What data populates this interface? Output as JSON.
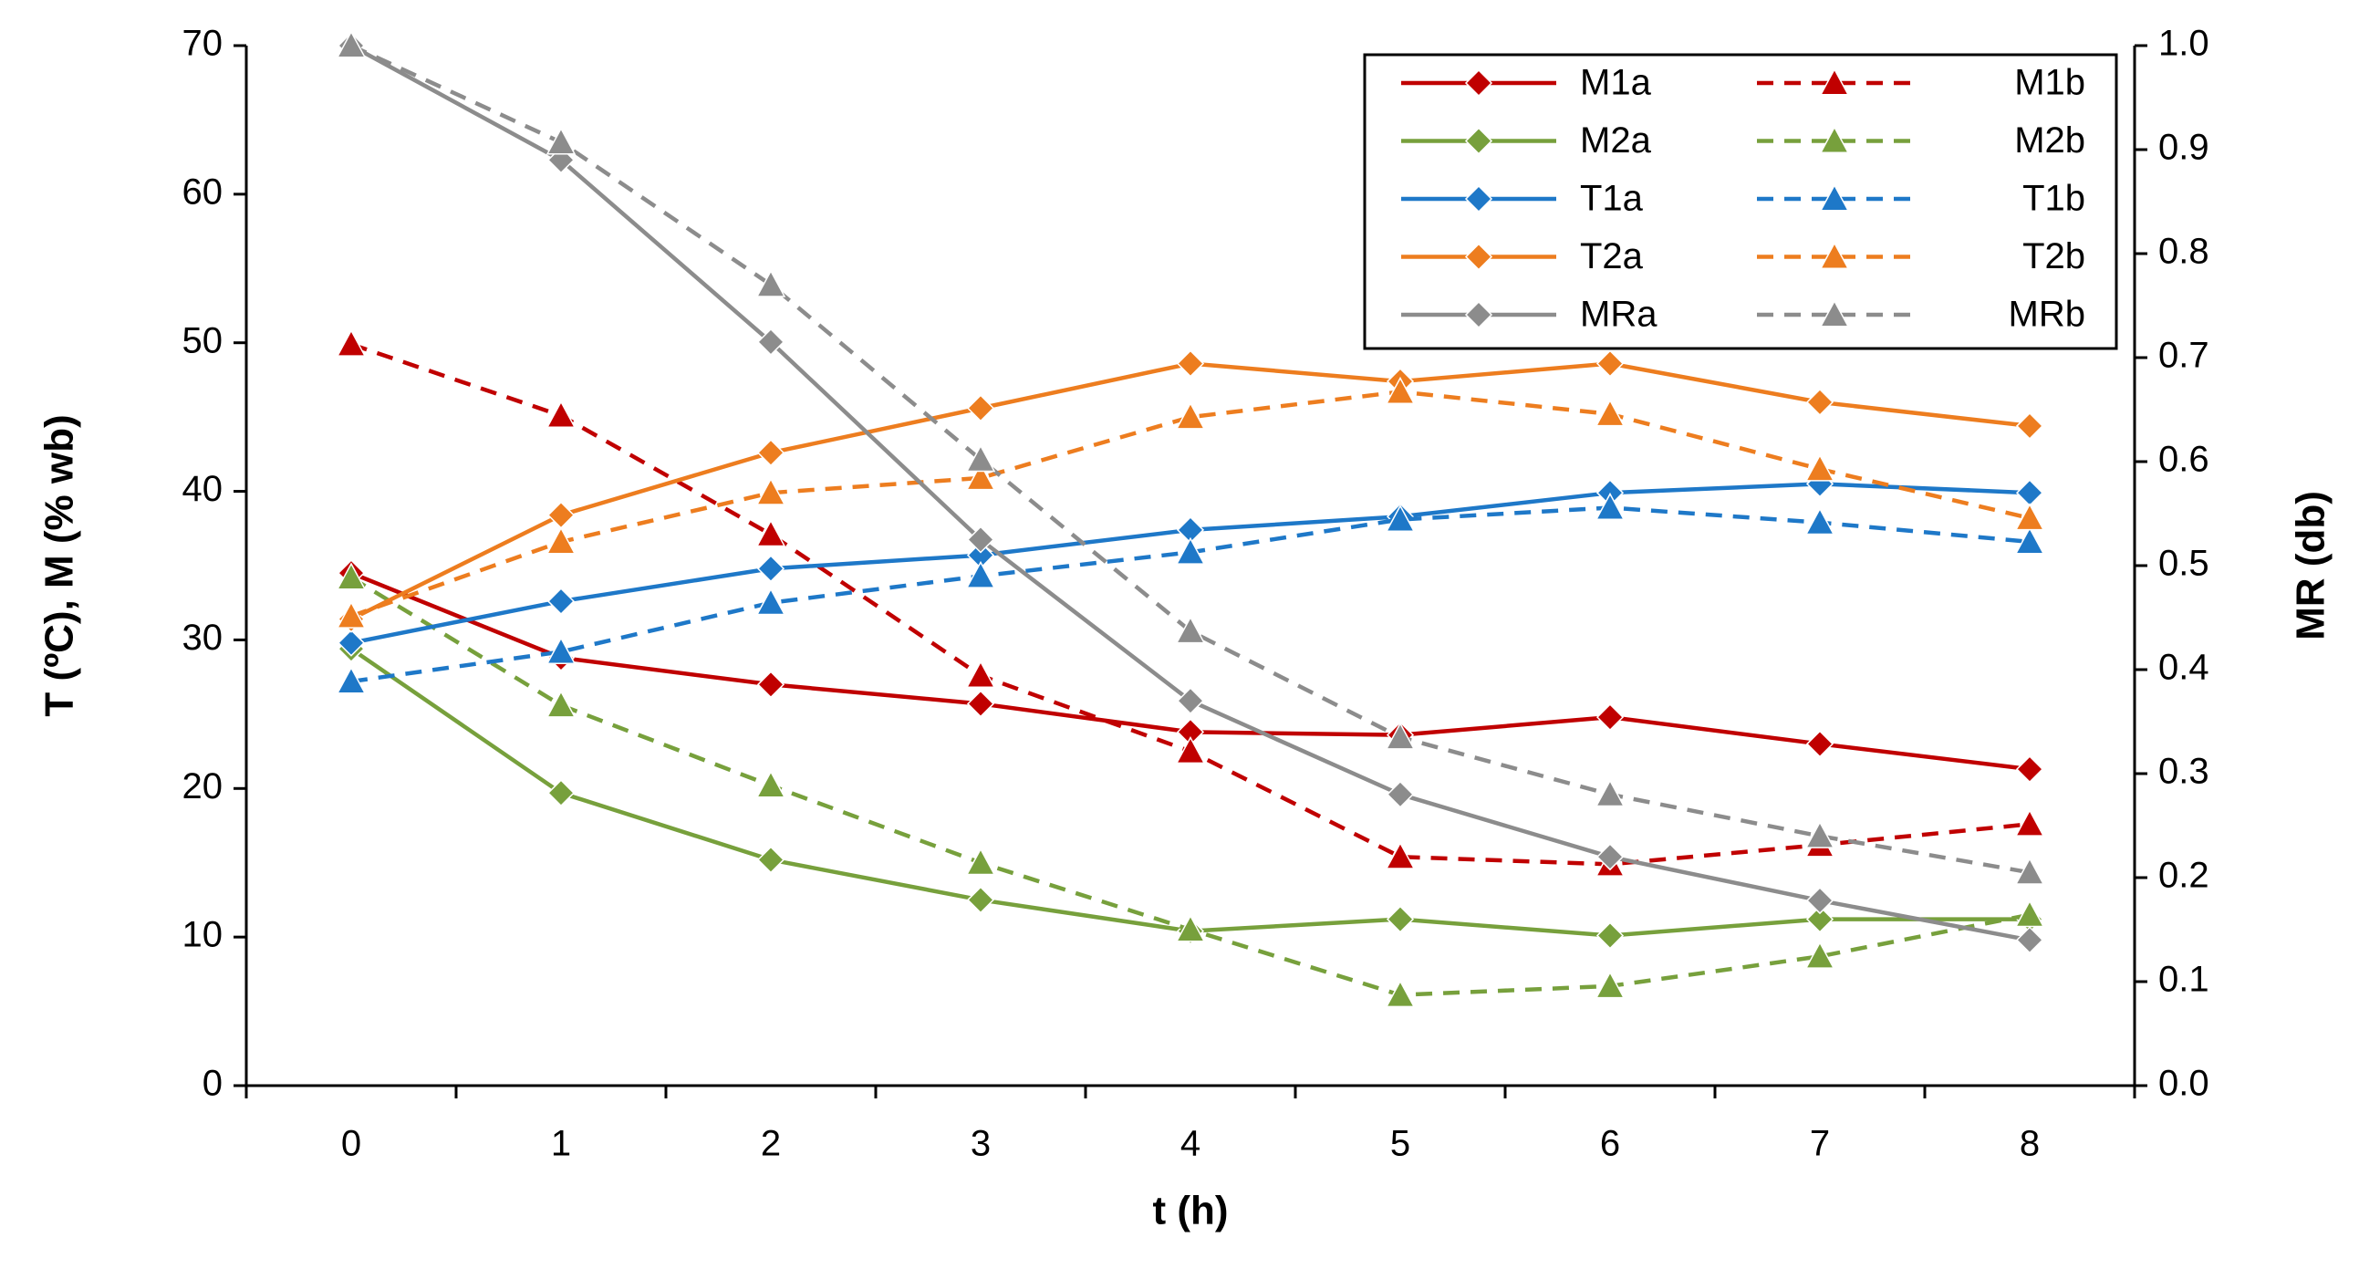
{
  "chart_data": {
    "type": "line",
    "xlabel": "t (h)",
    "ylabel_left": "T (ºC), M (% wb)",
    "ylabel_right": "MR (db)",
    "x": [
      0,
      1,
      2,
      3,
      4,
      5,
      6,
      7,
      8
    ],
    "xlim": [
      -0.5,
      8.5
    ],
    "ylim_left": [
      0,
      70
    ],
    "ylim_right": [
      0,
      1.0
    ],
    "yticks_left": [
      "0",
      "10",
      "20",
      "30",
      "40",
      "50",
      "60",
      "70"
    ],
    "yticks_right": [
      "0.0",
      "0.1",
      "0.2",
      "0.3",
      "0.4",
      "0.5",
      "0.6",
      "0.7",
      "0.8",
      "0.9",
      "1.0"
    ],
    "xticks": [
      "0",
      "1",
      "2",
      "3",
      "4",
      "5",
      "6",
      "7",
      "8"
    ],
    "grid": false,
    "legend_position": "top-right",
    "series": [
      {
        "name": "M1a",
        "axis": "left",
        "color": "#C00000",
        "dash": false,
        "marker": "diamond",
        "values": [
          34.5,
          28.8,
          27.0,
          25.7,
          23.8,
          23.6,
          24.8,
          23.0,
          21.3
        ]
      },
      {
        "name": "M1b",
        "axis": "left",
        "color": "#C00000",
        "dash": true,
        "marker": "triangle",
        "values": [
          49.9,
          45.1,
          37.1,
          27.6,
          22.5,
          15.4,
          14.9,
          16.2,
          17.6
        ]
      },
      {
        "name": "M2a",
        "axis": "left",
        "color": "#77A03C",
        "dash": false,
        "marker": "diamond",
        "values": [
          29.4,
          19.7,
          15.2,
          12.5,
          10.4,
          11.2,
          10.1,
          11.2,
          11.2
        ]
      },
      {
        "name": "M2b",
        "axis": "left",
        "color": "#77A03C",
        "dash": true,
        "marker": "triangle",
        "values": [
          34.2,
          25.6,
          20.2,
          15.0,
          10.5,
          6.1,
          6.7,
          8.7,
          11.5
        ]
      },
      {
        "name": "T1a",
        "axis": "left",
        "color": "#1E78C8",
        "dash": false,
        "marker": "diamond",
        "values": [
          29.8,
          32.6,
          34.8,
          35.7,
          37.4,
          38.3,
          39.9,
          40.5,
          39.9
        ]
      },
      {
        "name": "T1b",
        "axis": "left",
        "color": "#1E78C8",
        "dash": true,
        "marker": "triangle",
        "values": [
          27.2,
          29.2,
          32.5,
          34.3,
          35.9,
          38.1,
          38.9,
          37.9,
          36.6
        ]
      },
      {
        "name": "T2a",
        "axis": "left",
        "color": "#ED7D1F",
        "dash": false,
        "marker": "diamond",
        "values": [
          31.4,
          38.4,
          42.6,
          45.6,
          48.6,
          47.4,
          48.6,
          46.0,
          44.4
        ]
      },
      {
        "name": "T2b",
        "axis": "left",
        "color": "#ED7D1F",
        "dash": true,
        "marker": "triangle",
        "values": [
          31.6,
          36.6,
          39.9,
          40.9,
          45.0,
          46.7,
          45.2,
          41.5,
          38.2
        ]
      },
      {
        "name": "MRa",
        "axis": "right",
        "color": "#8C8C8C",
        "dash": false,
        "marker": "diamond",
        "values": [
          1.0,
          0.89,
          0.715,
          0.525,
          0.37,
          0.28,
          0.22,
          0.178,
          0.14
        ]
      },
      {
        "name": "MRb",
        "axis": "right",
        "color": "#8C8C8C",
        "dash": true,
        "marker": "triangle",
        "values": [
          1.0,
          0.907,
          0.77,
          0.602,
          0.437,
          0.335,
          0.28,
          0.24,
          0.205
        ]
      }
    ]
  }
}
